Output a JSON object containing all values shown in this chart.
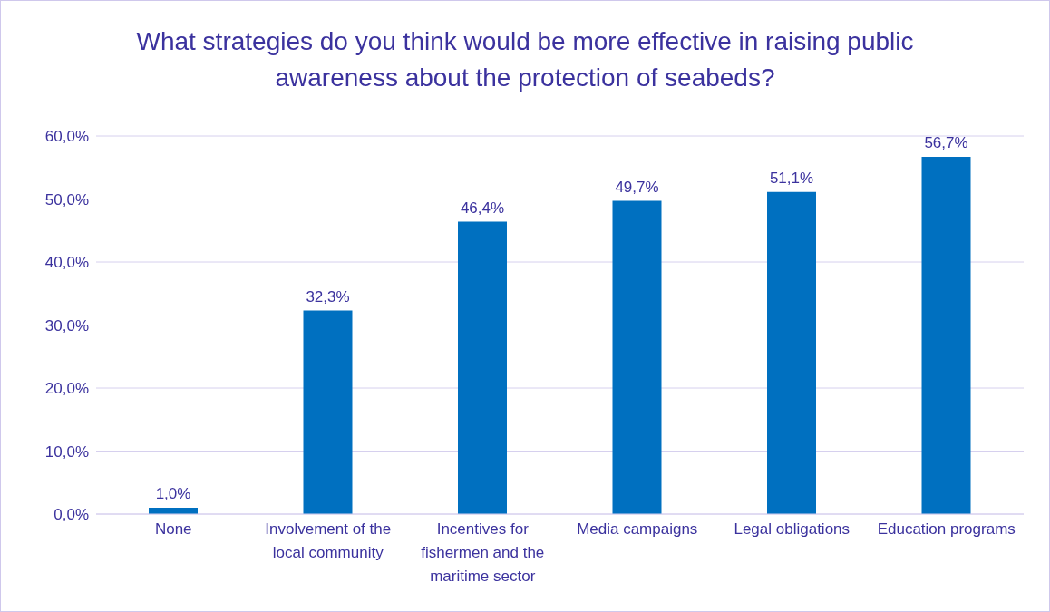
{
  "chart_data": {
    "type": "bar",
    "title": "What strategies do you think would be more effective in raising public awareness about the protection of seabeds?",
    "categories": [
      "None",
      "Involvement of the local community",
      "Incentives for fishermen and the maritime sector",
      "Media campaigns",
      "Legal obligations",
      "Education programs"
    ],
    "values": [
      1.0,
      32.3,
      46.4,
      49.7,
      51.1,
      56.7
    ],
    "value_labels": [
      "1,0%",
      "32,3%",
      "46,4%",
      "49,7%",
      "51,1%",
      "56,7%"
    ],
    "color": "#0070c0",
    "ylim": [
      0,
      60
    ],
    "yticks": [
      {
        "value": 0,
        "label": "0,0%"
      },
      {
        "value": 10,
        "label": "10,0%"
      },
      {
        "value": 20,
        "label": "20,0%"
      },
      {
        "value": 30,
        "label": "30,0%"
      },
      {
        "value": 40,
        "label": "40,0%"
      },
      {
        "value": 50,
        "label": "50,0%"
      },
      {
        "value": 60,
        "label": "60,0%"
      }
    ],
    "grid": "y",
    "legend": false
  }
}
